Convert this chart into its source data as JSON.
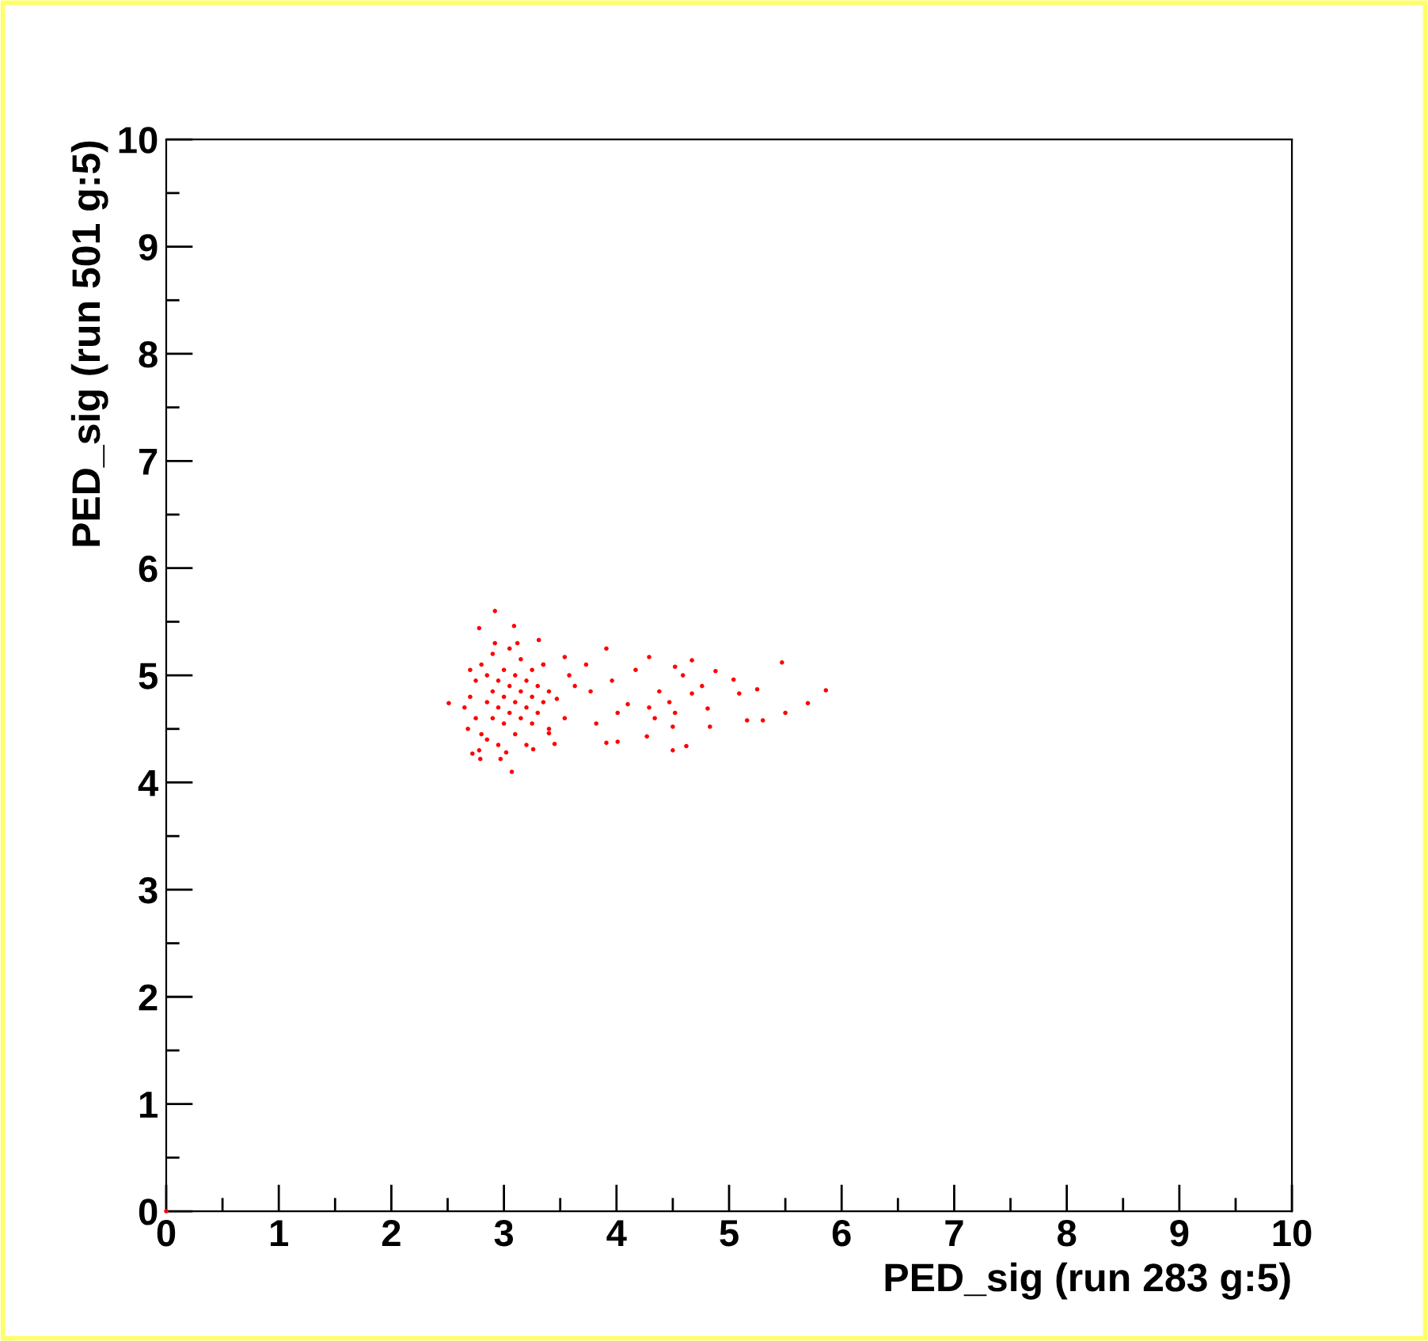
{
  "chart_data": {
    "type": "scatter",
    "xlabel": "PED_sig (run 283 g:5)",
    "ylabel": "PED_sig (run 501 g:5)",
    "xlim": [
      0,
      10
    ],
    "ylim": [
      0,
      10
    ],
    "xticks": [
      0,
      {
        "value": 0.5,
        "label": null
      },
      1,
      {
        "value": 1.5,
        "label": null
      },
      2,
      {
        "value": 2.5,
        "label": null
      },
      3,
      {
        "value": 3.5,
        "label": null
      },
      4,
      {
        "value": 4.5,
        "label": null
      },
      5,
      {
        "value": 5.5,
        "label": null
      },
      6,
      {
        "value": 6.5,
        "label": null
      },
      7,
      {
        "value": 7.5,
        "label": null
      },
      8,
      {
        "value": 8.5,
        "label": null
      },
      9,
      {
        "value": 9.5,
        "label": null
      },
      10
    ],
    "yticks": [
      0,
      {
        "value": 0.5,
        "label": null
      },
      1,
      {
        "value": 1.5,
        "label": null
      },
      2,
      {
        "value": 2.5,
        "label": null
      },
      3,
      {
        "value": 3.5,
        "label": null
      },
      4,
      {
        "value": 4.5,
        "label": null
      },
      5,
      {
        "value": 5.5,
        "label": null
      },
      6,
      {
        "value": 6.5,
        "label": null
      },
      7,
      {
        "value": 7.5,
        "label": null
      },
      8,
      {
        "value": 8.5,
        "label": null
      },
      9,
      {
        "value": 9.5,
        "label": null
      },
      10
    ],
    "grid": false,
    "legend": false,
    "marker": "circle",
    "series": [
      {
        "color": "#ff0000",
        "x": [
          0,
          2.7,
          2.75,
          2.75,
          2.8,
          2.8,
          2.85,
          2.85,
          2.85,
          2.9,
          2.9,
          2.9,
          2.95,
          2.95,
          2.95,
          3.0,
          3.0,
          3.0,
          3.05,
          3.05,
          3.05,
          3.1,
          3.1,
          3.1,
          3.15,
          3.15,
          3.15,
          3.2,
          3.2,
          3.2,
          3.25,
          3.25,
          3.25,
          3.3,
          3.3,
          3.35,
          3.35,
          2.65,
          2.7,
          2.78,
          3.02,
          3.12,
          2.92,
          3.4,
          3.4,
          2.68,
          2.92,
          2.51,
          5.86,
          3.07,
          5.47,
          4.5,
          5.7,
          5.5,
          5.3,
          5.16,
          4.88,
          5.09,
          5.25,
          5.04,
          4.62,
          4.67,
          4.29,
          3.91,
          3.31,
          3.09,
          2.78,
          2.72,
          2.79,
          2.97,
          3.26,
          4.01,
          3.91,
          4.27,
          4.83,
          4.81,
          4.5,
          4.52,
          4.38,
          4.47,
          4.17,
          4.52,
          4.59,
          4.1,
          4.01,
          3.82,
          3.73,
          3.54,
          3.47,
          3.63,
          3.4,
          3.54,
          3.77,
          3.96,
          4.29,
          4.34,
          4.76,
          4.67,
          3.58,
          3.35,
          3.45
        ],
        "values": [
          0,
          4.8,
          4.95,
          4.6,
          5.1,
          4.45,
          4.75,
          5.0,
          4.4,
          4.85,
          4.6,
          5.2,
          4.7,
          4.95,
          4.35,
          4.8,
          5.05,
          4.55,
          4.9,
          4.65,
          5.25,
          4.75,
          5.0,
          4.45,
          4.85,
          4.6,
          5.15,
          4.7,
          4.95,
          4.35,
          4.8,
          5.05,
          4.55,
          4.9,
          4.65,
          5.1,
          4.75,
          4.7,
          5.05,
          4.3,
          4.28,
          5.3,
          5.3,
          4.85,
          4.5,
          4.5,
          5.6,
          4.74,
          4.86,
          4.1,
          5.12,
          4.3,
          4.74,
          4.65,
          4.58,
          4.58,
          5.04,
          4.83,
          4.87,
          4.96,
          4.34,
          5.14,
          5.17,
          5.25,
          5.33,
          5.46,
          5.44,
          4.27,
          4.22,
          4.22,
          4.31,
          4.38,
          4.37,
          4.43,
          4.52,
          4.69,
          4.52,
          4.65,
          4.85,
          4.75,
          5.05,
          5.08,
          5.0,
          4.73,
          4.65,
          4.55,
          5.1,
          5.17,
          4.78,
          4.9,
          4.46,
          4.6,
          4.85,
          4.95,
          4.7,
          4.6,
          4.9,
          4.83,
          5.0,
          5.1,
          4.36
        ]
      }
    ]
  }
}
